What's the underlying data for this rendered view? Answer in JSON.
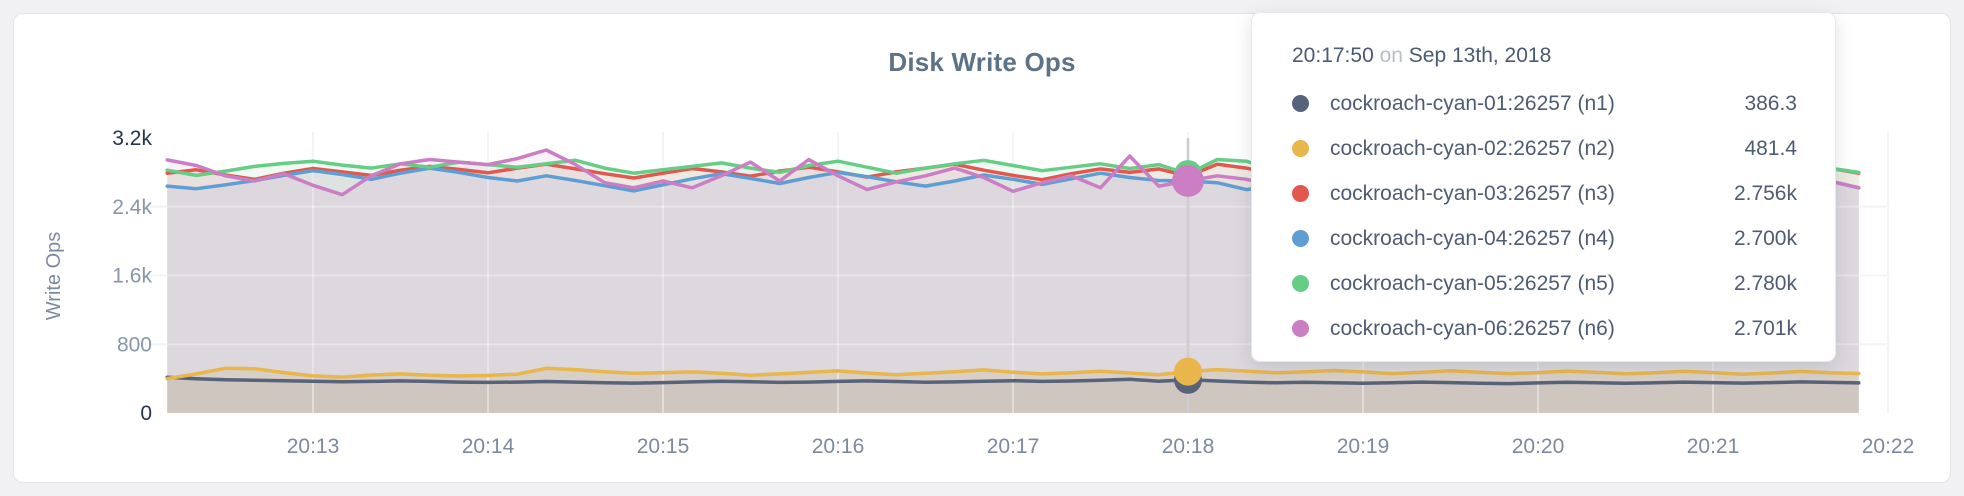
{
  "tooltip": {
    "time": "20:17:50",
    "on_word": "on",
    "date": "Sep 13th, 2018",
    "rows": [
      {
        "name": "cockroach-cyan-01:26257 (n1)",
        "value": "386.3",
        "color": "#57627B"
      },
      {
        "name": "cockroach-cyan-02:26257 (n2)",
        "value": "481.4",
        "color": "#E8B64B"
      },
      {
        "name": "cockroach-cyan-03:26257 (n3)",
        "value": "2.756k",
        "color": "#E2574E"
      },
      {
        "name": "cockroach-cyan-04:26257 (n4)",
        "value": "2.700k",
        "color": "#5F9ED3"
      },
      {
        "name": "cockroach-cyan-05:26257 (n5)",
        "value": "2.780k",
        "color": "#66CD86"
      },
      {
        "name": "cockroach-cyan-06:26257 (n6)",
        "value": "2.701k",
        "color": "#CB7EC3"
      }
    ]
  },
  "chart_data": {
    "type": "line",
    "title": "Disk Write Ops",
    "ylabel": "Write Ops",
    "ylim": [
      0,
      3200
    ],
    "grid": true,
    "legend_position": "tooltip",
    "x_start": "20:12:10",
    "x_end": "20:21:50",
    "x_interval_seconds": 10,
    "x_tick_labels": [
      "20:13",
      "20:14",
      "20:15",
      "20:16",
      "20:17",
      "20:18",
      "20:19",
      "20:20",
      "20:21",
      "20:22"
    ],
    "y_ticks": [
      {
        "v": 0,
        "label": "0"
      },
      {
        "v": 800,
        "label": "800"
      },
      {
        "v": 1600,
        "label": "1.6k"
      },
      {
        "v": 2400,
        "label": "2.4k"
      },
      {
        "v": 3200,
        "label": "3.2k"
      }
    ],
    "hover_index": 35,
    "hover_time": "20:17:50",
    "series": [
      {
        "name": "cockroach-cyan-01:26257 (n1)",
        "color": "#57627B",
        "fill_opacity": 0.12,
        "values": [
          415,
          398,
          388,
          380,
          376,
          370,
          364,
          368,
          374,
          368,
          360,
          356,
          360,
          366,
          360,
          352,
          348,
          354,
          362,
          370,
          364,
          356,
          360,
          368,
          374,
          366,
          358,
          362,
          370,
          376,
          368,
          372,
          380,
          392,
          370,
          386.3,
          372,
          360,
          352,
          358,
          352,
          346,
          352,
          360,
          354,
          346,
          342,
          350,
          358,
          352,
          346,
          352,
          360,
          354,
          348,
          354,
          362,
          356,
          350
        ]
      },
      {
        "name": "cockroach-cyan-02:26257 (n2)",
        "color": "#E8B64B",
        "fill_opacity": 0.18,
        "values": [
          400,
          455,
          520,
          515,
          470,
          432,
          418,
          442,
          455,
          440,
          430,
          438,
          452,
          520,
          505,
          480,
          462,
          470,
          478,
          462,
          440,
          455,
          472,
          490,
          465,
          445,
          462,
          480,
          502,
          475,
          455,
          468,
          485,
          465,
          445,
          481.4,
          505,
          488,
          468,
          478,
          495,
          478,
          458,
          472,
          492,
          475,
          458,
          470,
          488,
          472,
          456,
          468,
          486,
          470,
          452,
          466,
          484,
          468,
          460
        ]
      },
      {
        "name": "cockroach-cyan-03:26257 (n3)",
        "color": "#E2574E",
        "fill_opacity": 0.1,
        "values": [
          2790,
          2830,
          2770,
          2720,
          2790,
          2845,
          2805,
          2765,
          2825,
          2870,
          2835,
          2795,
          2850,
          2895,
          2840,
          2785,
          2735,
          2790,
          2845,
          2805,
          2755,
          2815,
          2860,
          2805,
          2745,
          2805,
          2850,
          2895,
          2825,
          2765,
          2715,
          2785,
          2840,
          2800,
          2840,
          2756,
          2895,
          2850,
          2775,
          2820,
          2870,
          2805,
          2745,
          2800,
          2860,
          2815,
          2755,
          2820,
          2880,
          2835,
          2775,
          2830,
          2890,
          2845,
          2785,
          2840,
          2895,
          2850,
          2790
        ]
      },
      {
        "name": "cockroach-cyan-04:26257 (n4)",
        "color": "#5F9ED3",
        "fill_opacity": 0.1,
        "values": [
          2640,
          2610,
          2655,
          2705,
          2765,
          2820,
          2775,
          2720,
          2790,
          2850,
          2800,
          2740,
          2700,
          2760,
          2705,
          2645,
          2585,
          2655,
          2725,
          2785,
          2730,
          2670,
          2740,
          2800,
          2750,
          2690,
          2640,
          2700,
          2770,
          2720,
          2660,
          2725,
          2790,
          2740,
          2705,
          2700,
          2680,
          2600,
          2650,
          2720,
          2780,
          2730,
          2670,
          2735,
          2800,
          2750,
          2690,
          2650,
          2715,
          2780,
          2730,
          2680,
          2745,
          2800,
          2750,
          2700,
          2655,
          2700,
          2620
        ]
      },
      {
        "name": "cockroach-cyan-05:26257 (n5)",
        "color": "#66CD86",
        "fill_opacity": 0.1,
        "values": [
          2825,
          2765,
          2815,
          2870,
          2905,
          2930,
          2885,
          2850,
          2900,
          2860,
          2920,
          2890,
          2860,
          2900,
          2940,
          2850,
          2790,
          2830,
          2870,
          2910,
          2850,
          2800,
          2880,
          2930,
          2860,
          2790,
          2850,
          2900,
          2940,
          2880,
          2820,
          2860,
          2900,
          2845,
          2890,
          2780,
          2950,
          2930,
          2820,
          2880,
          2930,
          2860,
          2800,
          2850,
          2900,
          2840,
          2880,
          2920,
          2850,
          2800,
          2860,
          2900,
          2930,
          2870,
          2810,
          2860,
          2900,
          2850,
          2800
        ]
      },
      {
        "name": "cockroach-cyan-06:26257 (n6)",
        "color": "#CB7EC3",
        "fill_opacity": 0.1,
        "values": [
          2945,
          2880,
          2760,
          2700,
          2785,
          2650,
          2540,
          2760,
          2900,
          2950,
          2920,
          2890,
          2960,
          3060,
          2890,
          2680,
          2620,
          2700,
          2620,
          2760,
          2920,
          2700,
          2950,
          2760,
          2600,
          2690,
          2760,
          2850,
          2740,
          2580,
          2680,
          2760,
          2620,
          2990,
          2640,
          2701,
          2760,
          2720,
          2650,
          2800,
          2630,
          2740,
          2900,
          2600,
          2750,
          2950,
          2700,
          2480,
          2650,
          2850,
          2600,
          2720,
          2980,
          2750,
          2650,
          2870,
          2760,
          2700,
          2620
        ]
      }
    ]
  }
}
